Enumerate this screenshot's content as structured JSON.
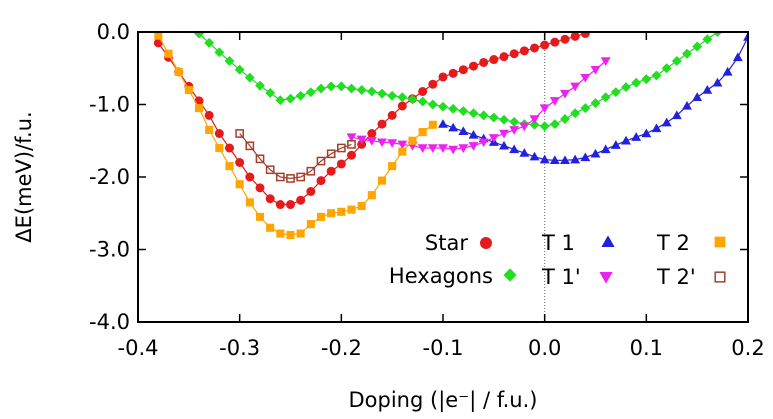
{
  "chart_data": {
    "type": "line",
    "xlabel": "Doping (|e⁻| / f.u.)",
    "ylabel": "ΔE(meV)/f.u.",
    "xlim": [
      -0.4,
      0.2
    ],
    "ylim": [
      -4.0,
      0.0
    ],
    "x_ticks": [
      -0.4,
      -0.3,
      -0.2,
      -0.1,
      0.0,
      0.1,
      0.2
    ],
    "x_tick_labels": [
      "-0.4",
      "-0.3",
      "-0.2",
      "-0.1",
      "0.0",
      "0.1",
      "0.2"
    ],
    "y_ticks": [
      0.0,
      -1.0,
      -2.0,
      -3.0,
      -4.0
    ],
    "y_tick_labels": [
      "0.0",
      "-1.0",
      "-2.0",
      "-3.0",
      "-4.0"
    ],
    "vertical_reference_line_x": 0.0,
    "grid": false,
    "legend_position": "bottom-right inside plot",
    "series": [
      {
        "name": "Star",
        "color": "#e41a1c",
        "marker": "circle",
        "x": [
          -0.38,
          -0.37,
          -0.36,
          -0.35,
          -0.34,
          -0.33,
          -0.32,
          -0.31,
          -0.3,
          -0.29,
          -0.28,
          -0.27,
          -0.26,
          -0.25,
          -0.24,
          -0.23,
          -0.22,
          -0.21,
          -0.2,
          -0.19,
          -0.18,
          -0.17,
          -0.16,
          -0.15,
          -0.14,
          -0.13,
          -0.12,
          -0.11,
          -0.1,
          -0.09,
          -0.08,
          -0.07,
          -0.06,
          -0.05,
          -0.04,
          -0.03,
          -0.02,
          -0.01,
          0.0,
          0.01,
          0.02,
          0.03,
          0.04
        ],
        "y": [
          -0.15,
          -0.35,
          -0.55,
          -0.75,
          -0.95,
          -1.15,
          -1.4,
          -1.6,
          -1.8,
          -2.0,
          -2.15,
          -2.3,
          -2.38,
          -2.38,
          -2.32,
          -2.2,
          -2.05,
          -1.92,
          -1.82,
          -1.7,
          -1.55,
          -1.4,
          -1.27,
          -1.15,
          -1.02,
          -0.92,
          -0.82,
          -0.72,
          -0.62,
          -0.57,
          -0.52,
          -0.47,
          -0.42,
          -0.38,
          -0.34,
          -0.3,
          -0.26,
          -0.22,
          -0.18,
          -0.14,
          -0.1,
          -0.06,
          -0.02
        ]
      },
      {
        "name": "Hexagons",
        "color": "#22dd22",
        "marker": "diamond",
        "x": [
          -0.34,
          -0.33,
          -0.32,
          -0.31,
          -0.3,
          -0.29,
          -0.28,
          -0.27,
          -0.26,
          -0.25,
          -0.24,
          -0.23,
          -0.22,
          -0.21,
          -0.2,
          -0.19,
          -0.18,
          -0.17,
          -0.16,
          -0.15,
          -0.14,
          -0.13,
          -0.12,
          -0.11,
          -0.1,
          -0.09,
          -0.08,
          -0.07,
          -0.06,
          -0.05,
          -0.04,
          -0.03,
          -0.02,
          -0.01,
          0.0,
          0.01,
          0.02,
          0.03,
          0.04,
          0.05,
          0.06,
          0.07,
          0.08,
          0.09,
          0.1,
          0.11,
          0.12,
          0.13,
          0.14,
          0.15,
          0.16,
          0.17
        ],
        "y": [
          -0.02,
          -0.15,
          -0.28,
          -0.4,
          -0.52,
          -0.63,
          -0.74,
          -0.84,
          -0.94,
          -0.92,
          -0.88,
          -0.83,
          -0.78,
          -0.75,
          -0.75,
          -0.78,
          -0.8,
          -0.82,
          -0.85,
          -0.88,
          -0.9,
          -0.93,
          -0.96,
          -1.0,
          -1.03,
          -1.06,
          -1.09,
          -1.12,
          -1.15,
          -1.18,
          -1.21,
          -1.24,
          -1.27,
          -1.28,
          -1.3,
          -1.27,
          -1.2,
          -1.12,
          -1.05,
          -0.98,
          -0.9,
          -0.83,
          -0.76,
          -0.7,
          -0.65,
          -0.6,
          -0.5,
          -0.4,
          -0.3,
          -0.2,
          -0.1,
          0.0
        ]
      },
      {
        "name": "T 1",
        "color": "#2222dd",
        "marker": "triangle-up",
        "x": [
          -0.1,
          -0.09,
          -0.08,
          -0.07,
          -0.06,
          -0.05,
          -0.04,
          -0.03,
          -0.02,
          -0.01,
          0.0,
          0.01,
          0.02,
          0.03,
          0.04,
          0.05,
          0.06,
          0.07,
          0.08,
          0.09,
          0.1,
          0.11,
          0.12,
          0.13,
          0.14,
          0.15,
          0.16,
          0.17,
          0.18,
          0.19,
          0.2
        ],
        "y": [
          -1.27,
          -1.32,
          -1.37,
          -1.42,
          -1.47,
          -1.52,
          -1.57,
          -1.62,
          -1.67,
          -1.72,
          -1.76,
          -1.77,
          -1.77,
          -1.76,
          -1.73,
          -1.68,
          -1.62,
          -1.56,
          -1.5,
          -1.45,
          -1.4,
          -1.33,
          -1.25,
          -1.15,
          -1.02,
          -0.9,
          -0.8,
          -0.7,
          -0.55,
          -0.35,
          -0.07
        ]
      },
      {
        "name": "T 1'",
        "color": "#ee22ee",
        "marker": "triangle-down",
        "x": [
          -0.19,
          -0.18,
          -0.17,
          -0.16,
          -0.15,
          -0.14,
          -0.13,
          -0.12,
          -0.11,
          -0.1,
          -0.09,
          -0.08,
          -0.07,
          -0.06,
          -0.05,
          -0.04,
          -0.03,
          -0.02,
          -0.01,
          0.0,
          0.01,
          0.02,
          0.03,
          0.04,
          0.05,
          0.06
        ],
        "y": [
          -1.45,
          -1.48,
          -1.5,
          -1.52,
          -1.53,
          -1.55,
          -1.57,
          -1.6,
          -1.6,
          -1.6,
          -1.62,
          -1.6,
          -1.57,
          -1.52,
          -1.46,
          -1.4,
          -1.35,
          -1.3,
          -1.2,
          -1.05,
          -0.95,
          -0.85,
          -0.75,
          -0.63,
          -0.52,
          -0.4
        ]
      },
      {
        "name": "T 2",
        "color": "#ffa500",
        "marker": "square",
        "x": [
          -0.38,
          -0.37,
          -0.36,
          -0.35,
          -0.34,
          -0.33,
          -0.32,
          -0.31,
          -0.3,
          -0.29,
          -0.28,
          -0.27,
          -0.26,
          -0.25,
          -0.24,
          -0.23,
          -0.22,
          -0.21,
          -0.2,
          -0.19,
          -0.18,
          -0.17,
          -0.16,
          -0.15,
          -0.14,
          -0.13,
          -0.12,
          -0.11
        ],
        "y": [
          -0.05,
          -0.3,
          -0.55,
          -0.8,
          -1.05,
          -1.35,
          -1.6,
          -1.85,
          -2.1,
          -2.35,
          -2.55,
          -2.7,
          -2.78,
          -2.8,
          -2.78,
          -2.65,
          -2.55,
          -2.5,
          -2.48,
          -2.45,
          -2.4,
          -2.25,
          -2.05,
          -1.85,
          -1.65,
          -1.5,
          -1.38,
          -1.28
        ]
      },
      {
        "name": "T 2'",
        "color": "#a0412d",
        "marker": "open-square",
        "x": [
          -0.3,
          -0.29,
          -0.28,
          -0.27,
          -0.26,
          -0.25,
          -0.24,
          -0.23,
          -0.22,
          -0.21,
          -0.2,
          -0.19
        ],
        "y": [
          -1.4,
          -1.57,
          -1.75,
          -1.9,
          -2.0,
          -2.02,
          -2.0,
          -1.92,
          -1.78,
          -1.68,
          -1.6,
          -1.55
        ]
      }
    ]
  },
  "legend": {
    "items": [
      {
        "label": "Star",
        "series": 0
      },
      {
        "label": "Hexagons",
        "series": 1
      },
      {
        "label": "T 1",
        "series": 2
      },
      {
        "label": "T 1'",
        "series": 3
      },
      {
        "label": "T 2",
        "series": 4
      },
      {
        "label": "T 2'",
        "series": 5
      }
    ]
  }
}
